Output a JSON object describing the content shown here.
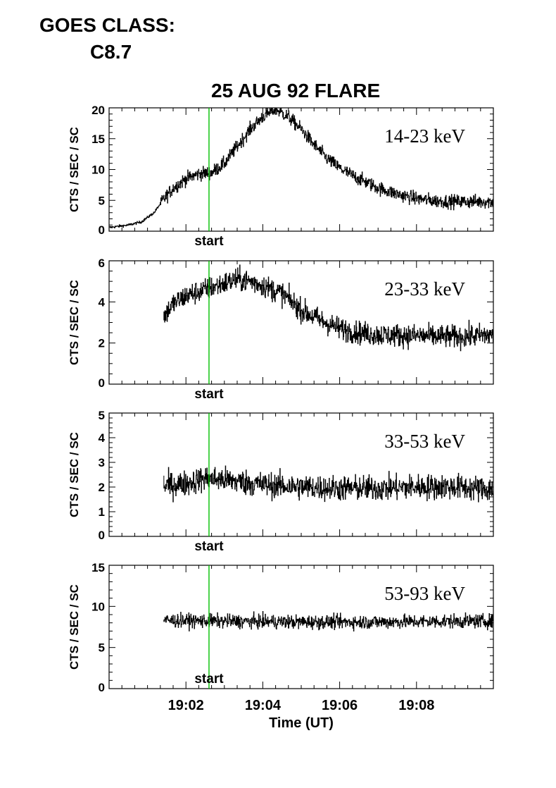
{
  "goes": {
    "label": "GOES CLASS:",
    "value": "C8.7"
  },
  "chart_data": {
    "type": "line",
    "title": "25 AUG 92 FLARE",
    "xlabel": "Time (UT)",
    "x_unit": "UT time (hh:mm)",
    "x_ticks": [
      "19:02",
      "19:04",
      "19:06",
      "19:08"
    ],
    "xlim": [
      "19:00:00",
      "19:10:00"
    ],
    "marker": {
      "label": "start",
      "time": "19:02:36",
      "color": "#00c000"
    },
    "panels": [
      {
        "name": "14-23 keV",
        "ylabel": "CTS / SEC / SC",
        "ylim": [
          0,
          20
        ],
        "yticks": [
          "0",
          "5",
          "10",
          "15",
          "20"
        ],
        "minor_per_major": 5,
        "noise": 0.55,
        "start": "19:00:00",
        "profile": [
          [
            "19:00:00",
            0.6
          ],
          [
            "19:00:30",
            1.0
          ],
          [
            "19:00:50",
            1.5
          ],
          [
            "19:01:10",
            3.0
          ],
          [
            "19:01:25",
            5.2
          ],
          [
            "19:01:40",
            7.0
          ],
          [
            "19:02:00",
            8.5
          ],
          [
            "19:02:20",
            9.3
          ],
          [
            "19:02:40",
            9.5
          ],
          [
            "19:03:00",
            11.0
          ],
          [
            "19:03:20",
            13.8
          ],
          [
            "19:03:40",
            16.5
          ],
          [
            "19:04:00",
            18.6
          ],
          [
            "19:04:20",
            19.8
          ],
          [
            "19:04:40",
            18.5
          ],
          [
            "19:05:00",
            16.5
          ],
          [
            "19:05:20",
            14.0
          ],
          [
            "19:05:40",
            11.8
          ],
          [
            "19:06:00",
            10.2
          ],
          [
            "19:06:20",
            9.0
          ],
          [
            "19:06:40",
            8.0
          ],
          [
            "19:07:00",
            7.0
          ],
          [
            "19:07:30",
            6.0
          ],
          [
            "19:08:00",
            5.3
          ],
          [
            "19:08:30",
            4.9
          ],
          [
            "19:09:00",
            4.8
          ],
          [
            "19:10:00",
            4.8
          ]
        ]
      },
      {
        "name": "23-33 keV",
        "ylabel": "CTS / SEC / SC",
        "ylim": [
          0,
          6
        ],
        "yticks": [
          "0",
          "2",
          "4",
          "6"
        ],
        "minor_per_major": 4,
        "noise": 0.28,
        "start": "19:01:25",
        "profile": [
          [
            "19:01:25",
            3.3
          ],
          [
            "19:01:40",
            3.9
          ],
          [
            "19:02:00",
            4.3
          ],
          [
            "19:02:30",
            4.6
          ],
          [
            "19:03:00",
            4.9
          ],
          [
            "19:03:20",
            5.1
          ],
          [
            "19:03:40",
            5.0
          ],
          [
            "19:04:00",
            4.8
          ],
          [
            "19:04:30",
            4.4
          ],
          [
            "19:05:00",
            3.6
          ],
          [
            "19:05:30",
            3.1
          ],
          [
            "19:06:00",
            2.7
          ],
          [
            "19:06:30",
            2.5
          ],
          [
            "19:07:00",
            2.4
          ],
          [
            "19:08:00",
            2.35
          ],
          [
            "19:09:00",
            2.3
          ],
          [
            "19:10:00",
            2.4
          ]
        ]
      },
      {
        "name": "33-53 keV",
        "ylabel": "CTS / SEC / SC",
        "ylim": [
          0,
          5
        ],
        "yticks": [
          "0",
          "1",
          "2",
          "3",
          "4",
          "5"
        ],
        "minor_per_major": 5,
        "noise": 0.26,
        "start": "19:01:25",
        "profile": [
          [
            "19:01:25",
            2.05
          ],
          [
            "19:02:00",
            2.15
          ],
          [
            "19:02:30",
            2.35
          ],
          [
            "19:03:00",
            2.3
          ],
          [
            "19:03:30",
            2.2
          ],
          [
            "19:04:00",
            2.1
          ],
          [
            "19:05:00",
            2.0
          ],
          [
            "19:06:00",
            1.95
          ],
          [
            "19:07:00",
            1.95
          ],
          [
            "19:08:00",
            2.0
          ],
          [
            "19:09:00",
            2.0
          ],
          [
            "19:10:00",
            1.9
          ]
        ]
      },
      {
        "name": "53-93 keV",
        "ylabel": "CTS / SEC / SC",
        "ylim": [
          0,
          15
        ],
        "yticks": [
          "0",
          "5",
          "10",
          "15"
        ],
        "minor_per_major": 5,
        "noise": 0.42,
        "start": "19:01:25",
        "profile": [
          [
            "19:01:25",
            8.3
          ],
          [
            "19:03:00",
            8.2
          ],
          [
            "19:05:00",
            8.1
          ],
          [
            "19:07:00",
            8.1
          ],
          [
            "19:09:00",
            8.2
          ],
          [
            "19:10:00",
            8.2
          ]
        ]
      }
    ]
  }
}
